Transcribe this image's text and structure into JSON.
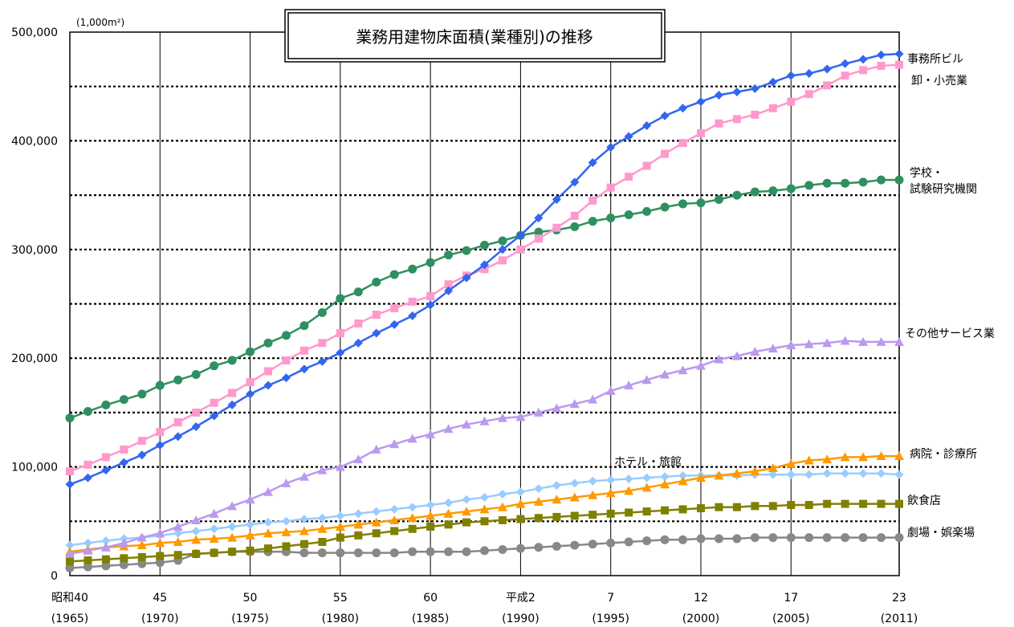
{
  "chart_data": {
    "type": "line",
    "title": "業務用建物床面積(業種別)の推移",
    "unit_label": "(1,000m²)",
    "ylim": [
      0,
      500000
    ],
    "y_ticks": [
      "0",
      "100,000",
      "200,000",
      "300,000",
      "400,000",
      "500,000"
    ],
    "x_ticks": [
      {
        "year": 1965,
        "era": "昭和40",
        "western": "(1965)"
      },
      {
        "year": 1970,
        "era": "45",
        "western": "(1970)"
      },
      {
        "year": 1975,
        "era": "50",
        "western": "(1975)"
      },
      {
        "year": 1980,
        "era": "55",
        "western": "(1980)"
      },
      {
        "year": 1985,
        "era": "60",
        "western": "(1985)"
      },
      {
        "year": 1990,
        "era": "平成2",
        "western": "(1990)"
      },
      {
        "year": 1995,
        "era": "7",
        "western": "(1995)"
      },
      {
        "year": 2000,
        "era": "12",
        "western": "(2000)"
      },
      {
        "year": 2005,
        "era": "17",
        "western": "(2005)"
      },
      {
        "year": 2011,
        "era": "23",
        "western": "(2011)"
      }
    ],
    "x": [
      1965,
      1966,
      1967,
      1968,
      1969,
      1970,
      1971,
      1972,
      1973,
      1974,
      1975,
      1976,
      1977,
      1978,
      1979,
      1980,
      1981,
      1982,
      1983,
      1984,
      1985,
      1986,
      1987,
      1988,
      1989,
      1990,
      1991,
      1992,
      1993,
      1994,
      1995,
      1996,
      1997,
      1998,
      1999,
      2000,
      2001,
      2002,
      2003,
      2004,
      2005,
      2006,
      2007,
      2008,
      2009,
      2010,
      2011
    ],
    "series": [
      {
        "name": "事務所ビル",
        "color": "#3366ee",
        "marker": "diamond",
        "values": [
          84000,
          90000,
          97000,
          104000,
          111000,
          120000,
          128000,
          137000,
          147000,
          157000,
          167000,
          175000,
          182000,
          190000,
          197000,
          205000,
          214000,
          223000,
          231000,
          239000,
          249000,
          262000,
          274000,
          286000,
          300000,
          313000,
          329000,
          346000,
          362000,
          380000,
          394000,
          404000,
          414000,
          423000,
          430000,
          436000,
          442000,
          445000,
          448000,
          454000,
          460000,
          462000,
          466000,
          471000,
          475000,
          479000,
          480000
        ]
      },
      {
        "name": "卸・小売業",
        "color": "#ff99cc",
        "marker": "square",
        "values": [
          96000,
          102000,
          109000,
          116000,
          124000,
          132000,
          141000,
          150000,
          159000,
          168000,
          178000,
          188000,
          198000,
          207000,
          214000,
          223000,
          232000,
          240000,
          246000,
          252000,
          257000,
          268000,
          276000,
          282000,
          290000,
          300000,
          310000,
          320000,
          331000,
          345000,
          357000,
          367000,
          377000,
          388000,
          398000,
          407000,
          416000,
          420000,
          424000,
          430000,
          436000,
          443000,
          451000,
          460000,
          465000,
          469000,
          470000
        ]
      },
      {
        "name": "学校・試験研究機関",
        "color": "#2e9060",
        "marker": "circle",
        "values": [
          145000,
          151000,
          157000,
          162000,
          167000,
          175000,
          180000,
          185000,
          193000,
          198000,
          206000,
          214000,
          221000,
          230000,
          242000,
          255000,
          261000,
          270000,
          277000,
          282000,
          288000,
          295000,
          299000,
          304000,
          308000,
          313000,
          316000,
          318000,
          321000,
          326000,
          329000,
          332000,
          335000,
          339000,
          342000,
          343000,
          346000,
          350000,
          353000,
          354000,
          356000,
          359000,
          361000,
          361000,
          362000,
          364000,
          364000
        ]
      },
      {
        "name": "その他サービス業",
        "color": "#bb99ee",
        "marker": "triangle",
        "values": [
          20000,
          23000,
          26000,
          30000,
          35000,
          39000,
          45000,
          51000,
          57000,
          64000,
          70000,
          77000,
          85000,
          91000,
          97000,
          100000,
          107000,
          116000,
          121000,
          126000,
          130000,
          135000,
          139000,
          142000,
          145000,
          146000,
          150000,
          154000,
          158000,
          162000,
          170000,
          175000,
          180000,
          185000,
          189000,
          193000,
          199000,
          202000,
          206000,
          209000,
          212000,
          213000,
          214000,
          216000,
          215000,
          215000,
          215000
        ]
      },
      {
        "name": "病院・診療所",
        "color": "#ff9900",
        "marker": "triangle",
        "values": [
          22000,
          24000,
          26000,
          27000,
          28000,
          30000,
          31000,
          33000,
          34000,
          35000,
          37000,
          39000,
          40000,
          41000,
          43000,
          45000,
          47000,
          49000,
          51000,
          53000,
          55000,
          57000,
          59000,
          61000,
          63000,
          66000,
          68000,
          70000,
          72000,
          74000,
          76000,
          78000,
          81000,
          84000,
          87000,
          90000,
          92000,
          94000,
          96000,
          99000,
          103000,
          106000,
          107000,
          109000,
          109000,
          110000,
          110000
        ]
      },
      {
        "name": "ホテル・旅館",
        "color": "#99ccff",
        "marker": "diamond",
        "values": [
          28000,
          30000,
          32000,
          34000,
          35000,
          37000,
          39000,
          41000,
          43000,
          45000,
          47000,
          49000,
          50000,
          52000,
          53000,
          55000,
          57000,
          59000,
          61000,
          63000,
          65000,
          67000,
          70000,
          72000,
          75000,
          77000,
          80000,
          83000,
          85000,
          87000,
          88000,
          89000,
          90000,
          91000,
          92000,
          92000,
          92000,
          92000,
          93000,
          93000,
          93000,
          93000,
          94000,
          94000,
          94000,
          94000,
          93000
        ]
      },
      {
        "name": "飲食店",
        "color": "#808000",
        "marker": "square",
        "values": [
          13000,
          14000,
          15000,
          16000,
          17000,
          18000,
          19000,
          20000,
          21000,
          22000,
          23000,
          25000,
          27000,
          29000,
          31000,
          35000,
          37000,
          39000,
          41000,
          43000,
          45000,
          47000,
          49000,
          50000,
          51000,
          52000,
          53000,
          54000,
          55000,
          56000,
          57000,
          58000,
          59000,
          60000,
          61000,
          62000,
          63000,
          63000,
          64000,
          64000,
          65000,
          65000,
          66000,
          66000,
          66000,
          66000,
          66000
        ]
      },
      {
        "name": "劇場・娯楽場",
        "color": "#888888",
        "marker": "circle",
        "values": [
          7000,
          8000,
          9000,
          10000,
          11000,
          12000,
          14000,
          20000,
          21000,
          22000,
          22000,
          22000,
          22000,
          21000,
          21000,
          21000,
          21000,
          21000,
          21000,
          22000,
          22000,
          22000,
          22000,
          23000,
          24000,
          25000,
          26000,
          27000,
          28000,
          29000,
          30000,
          31000,
          32000,
          33000,
          33000,
          34000,
          34000,
          34000,
          35000,
          35000,
          35000,
          35000,
          35000,
          35000,
          35000,
          35000,
          35000
        ]
      }
    ],
    "labels": [
      "事務所ビル",
      "卸・小売業",
      "学校・",
      "試験研究機関",
      "その他サービス業",
      "病院・診療所",
      "ホテル・旅館",
      "飲食店",
      "劇場・娯楽場"
    ]
  }
}
